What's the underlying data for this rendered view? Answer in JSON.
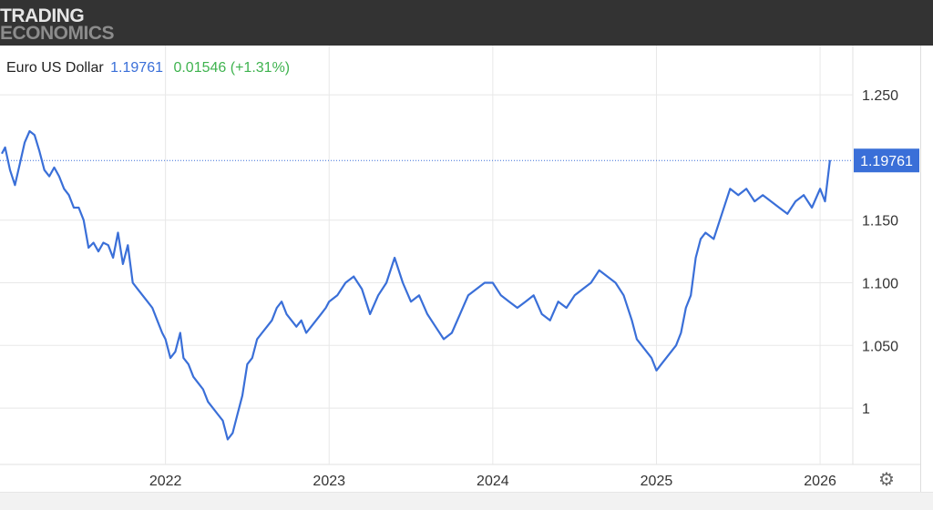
{
  "brand": {
    "line1": "TRADING",
    "line2": "ECONOMICS"
  },
  "header": {
    "name": "Euro US Dollar",
    "price": "1.19761",
    "change": "0.01546",
    "change_pct": "(+1.31%)"
  },
  "colors": {
    "line": "#3a6fd8",
    "positive": "#3fb34f",
    "topbar": "#333333",
    "price_tag": "#3a6fd8"
  },
  "icons": {
    "settings": "gear-icon"
  },
  "chart_data": {
    "type": "line",
    "title": "Euro US Dollar",
    "series": [
      {
        "name": "Euro US Dollar",
        "x": [
          2021.0,
          2021.02,
          2021.05,
          2021.08,
          2021.11,
          2021.14,
          2021.17,
          2021.2,
          2021.23,
          2021.26,
          2021.29,
          2021.32,
          2021.35,
          2021.38,
          2021.41,
          2021.44,
          2021.47,
          2021.5,
          2021.53,
          2021.56,
          2021.59,
          2021.62,
          2021.65,
          2021.68,
          2021.71,
          2021.74,
          2021.77,
          2021.8,
          2021.83,
          2021.86,
          2021.89,
          2021.92,
          2021.95,
          2021.98,
          2022.0,
          2022.03,
          2022.06,
          2022.09,
          2022.11,
          2022.14,
          2022.17,
          2022.2,
          2022.23,
          2022.26,
          2022.29,
          2022.32,
          2022.35,
          2022.38,
          2022.41,
          2022.44,
          2022.47,
          2022.5,
          2022.53,
          2022.56,
          2022.59,
          2022.62,
          2022.65,
          2022.68,
          2022.71,
          2022.74,
          2022.77,
          2022.8,
          2022.83,
          2022.86,
          2022.89,
          2022.92,
          2022.95,
          2022.98,
          2023.0,
          2023.05,
          2023.1,
          2023.15,
          2023.2,
          2023.25,
          2023.3,
          2023.35,
          2023.4,
          2023.45,
          2023.5,
          2023.55,
          2023.6,
          2023.65,
          2023.7,
          2023.75,
          2023.8,
          2023.85,
          2023.9,
          2023.95,
          2024.0,
          2024.05,
          2024.1,
          2024.15,
          2024.2,
          2024.25,
          2024.3,
          2024.35,
          2024.4,
          2024.45,
          2024.5,
          2024.55,
          2024.6,
          2024.65,
          2024.7,
          2024.75,
          2024.8,
          2024.85,
          2024.88,
          2024.91,
          2024.94,
          2024.97,
          2025.0,
          2025.03,
          2025.06,
          2025.09,
          2025.12,
          2025.15,
          2025.18,
          2025.21,
          2025.24,
          2025.27,
          2025.3,
          2025.35,
          2025.4,
          2025.45,
          2025.5,
          2025.55,
          2025.6,
          2025.65,
          2025.7,
          2025.75,
          2025.8,
          2025.85,
          2025.9,
          2025.95,
          2026.0,
          2026.03,
          2026.06
        ],
        "values": [
          1.203,
          1.208,
          1.19,
          1.178,
          1.195,
          1.212,
          1.221,
          1.218,
          1.205,
          1.19,
          1.185,
          1.192,
          1.185,
          1.175,
          1.17,
          1.16,
          1.16,
          1.15,
          1.128,
          1.132,
          1.125,
          1.132,
          1.13,
          1.12,
          1.14,
          1.115,
          1.13,
          1.1,
          1.095,
          1.09,
          1.085,
          1.08,
          1.07,
          1.06,
          1.055,
          1.04,
          1.045,
          1.06,
          1.04,
          1.035,
          1.025,
          1.02,
          1.015,
          1.005,
          1.0,
          0.995,
          0.99,
          0.975,
          0.98,
          0.995,
          1.01,
          1.035,
          1.04,
          1.055,
          1.06,
          1.065,
          1.07,
          1.08,
          1.085,
          1.075,
          1.07,
          1.065,
          1.07,
          1.06,
          1.065,
          1.07,
          1.075,
          1.08,
          1.085,
          1.09,
          1.1,
          1.105,
          1.095,
          1.075,
          1.09,
          1.1,
          1.12,
          1.1,
          1.085,
          1.09,
          1.075,
          1.065,
          1.055,
          1.06,
          1.075,
          1.09,
          1.095,
          1.1,
          1.1,
          1.09,
          1.085,
          1.08,
          1.085,
          1.09,
          1.075,
          1.07,
          1.085,
          1.08,
          1.09,
          1.095,
          1.1,
          1.11,
          1.105,
          1.1,
          1.09,
          1.07,
          1.055,
          1.05,
          1.045,
          1.04,
          1.03,
          1.035,
          1.04,
          1.045,
          1.05,
          1.06,
          1.08,
          1.09,
          1.12,
          1.135,
          1.14,
          1.135,
          1.155,
          1.175,
          1.17,
          1.175,
          1.165,
          1.17,
          1.165,
          1.16,
          1.155,
          1.165,
          1.17,
          1.16,
          1.175,
          1.165,
          1.198
        ]
      }
    ],
    "y_ticks": [
      "1.250",
      "1.150",
      "1.100",
      "1.050",
      "1"
    ],
    "x_ticks": [
      "2022",
      "2023",
      "2024",
      "2025",
      "2026"
    ],
    "ylim": [
      0.955,
      1.285
    ],
    "xlim": [
      2021.0,
      2026.2
    ],
    "last_value_label": "1.19761",
    "grid": true
  }
}
